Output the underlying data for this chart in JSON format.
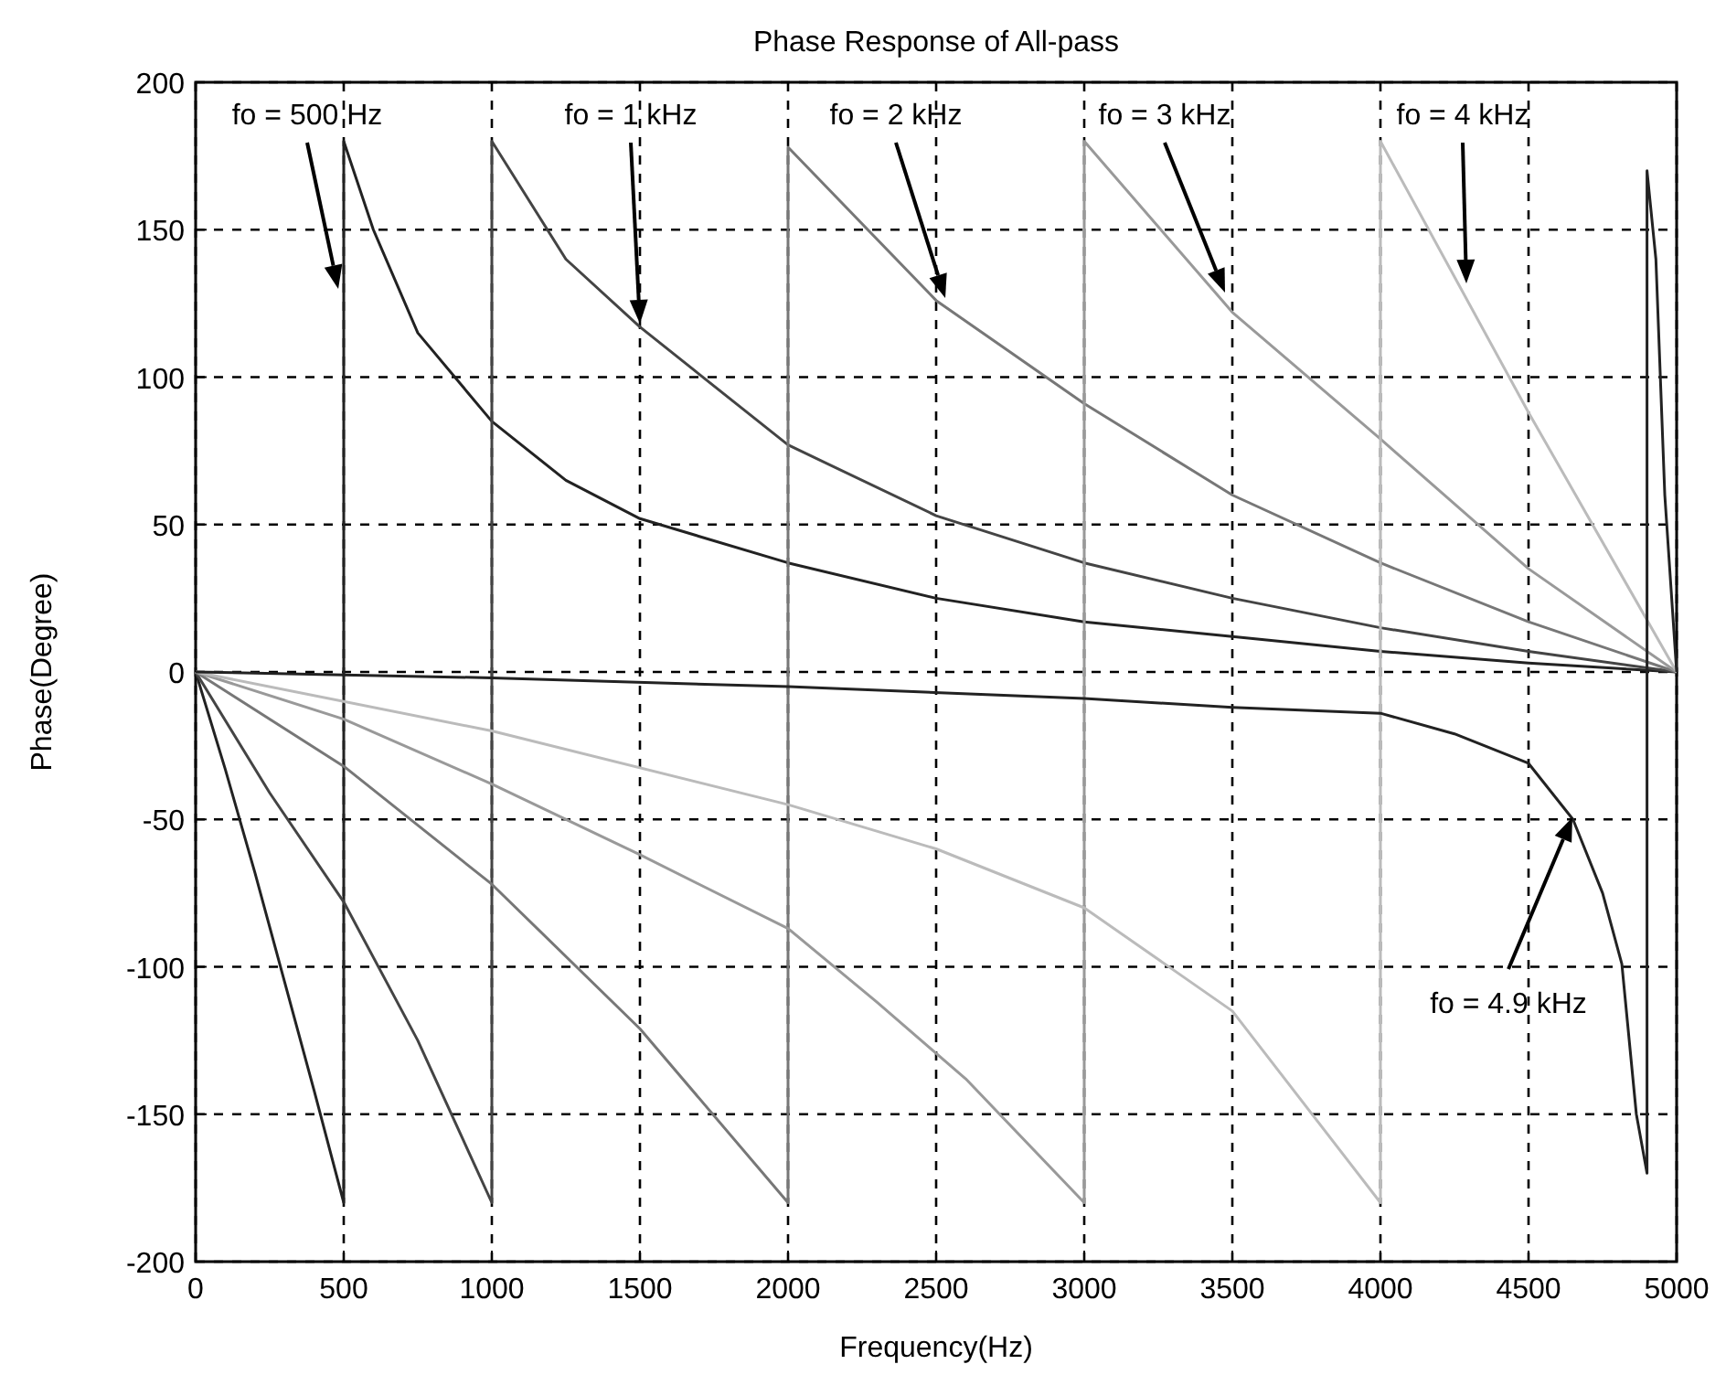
{
  "chart_data": {
    "type": "line",
    "title": "Phase Response of All-pass",
    "xlabel": "Frequency(Hz)",
    "ylabel": "Phase(Degree)",
    "xlim": [
      0,
      5000
    ],
    "xticks": [
      0,
      500,
      1000,
      1500,
      2000,
      2500,
      3000,
      3500,
      4000,
      4500,
      5000
    ],
    "ylim": [
      -200,
      200
    ],
    "yticks": [
      -200,
      -150,
      -100,
      -50,
      0,
      50,
      100,
      150,
      200
    ],
    "grid": true,
    "marker": "none",
    "line_style": "solid",
    "series": [
      {
        "color": "#222222",
        "x": [
          0,
          100,
          200,
          300,
          400,
          500,
          500,
          600,
          750,
          1000,
          1250,
          1500,
          2000,
          2500,
          3000,
          3500,
          4000,
          4500,
          5000
        ],
        "values": [
          0,
          -33,
          -68,
          -105,
          -142,
          -180,
          180,
          150,
          115,
          85,
          65,
          52,
          37,
          25,
          17,
          12,
          7,
          3,
          0
        ]
      },
      {
        "color": "#444444",
        "x": [
          0,
          250,
          500,
          750,
          1000,
          1000,
          1250,
          1500,
          2000,
          2500,
          3000,
          3500,
          4000,
          4500,
          5000
        ],
        "values": [
          0,
          -41,
          -78,
          -125,
          -180,
          180,
          140,
          117,
          77,
          53,
          37,
          25,
          15,
          7,
          0
        ]
      },
      {
        "color": "#777777",
        "x": [
          0,
          500,
          1000,
          1500,
          2000,
          2000,
          2500,
          3000,
          3500,
          4000,
          4500,
          5000
        ],
        "values": [
          0,
          -32,
          -72,
          -121,
          -180,
          178,
          126,
          91,
          60,
          37,
          17,
          0
        ]
      },
      {
        "color": "#999999",
        "x": [
          0,
          500,
          1000,
          1500,
          2000,
          2300,
          2600,
          3000,
          3000,
          3500,
          4000,
          4500,
          5000
        ],
        "values": [
          0,
          -16,
          -38,
          -62,
          -87,
          -112,
          -138,
          -180,
          180,
          122,
          79,
          35,
          0
        ]
      },
      {
        "color": "#bbbbbb",
        "x": [
          0,
          1000,
          2000,
          2500,
          3000,
          3500,
          4000,
          4000,
          4500,
          5000
        ],
        "values": [
          0,
          -20,
          -45,
          -60,
          -80,
          -115,
          -180,
          180,
          88,
          0
        ]
      },
      {
        "color": "#222222",
        "x": [
          0,
          1000,
          2000,
          3000,
          3500,
          4000,
          4250,
          4500,
          4650,
          4750,
          4815,
          4864,
          4900,
          4900,
          4930,
          4960,
          5000
        ],
        "values": [
          0,
          -2,
          -5,
          -9,
          -12,
          -14,
          -21,
          -31,
          -50,
          -75,
          -99,
          -150,
          -170,
          170,
          140,
          60,
          0
        ]
      }
    ],
    "annotations": [
      "fo = 500 Hz",
      "fo = 1 kHz",
      "fo = 2 kHz",
      "fo = 3 kHz",
      "fo = 4 kHz",
      "fo = 4.9 kHz"
    ]
  }
}
